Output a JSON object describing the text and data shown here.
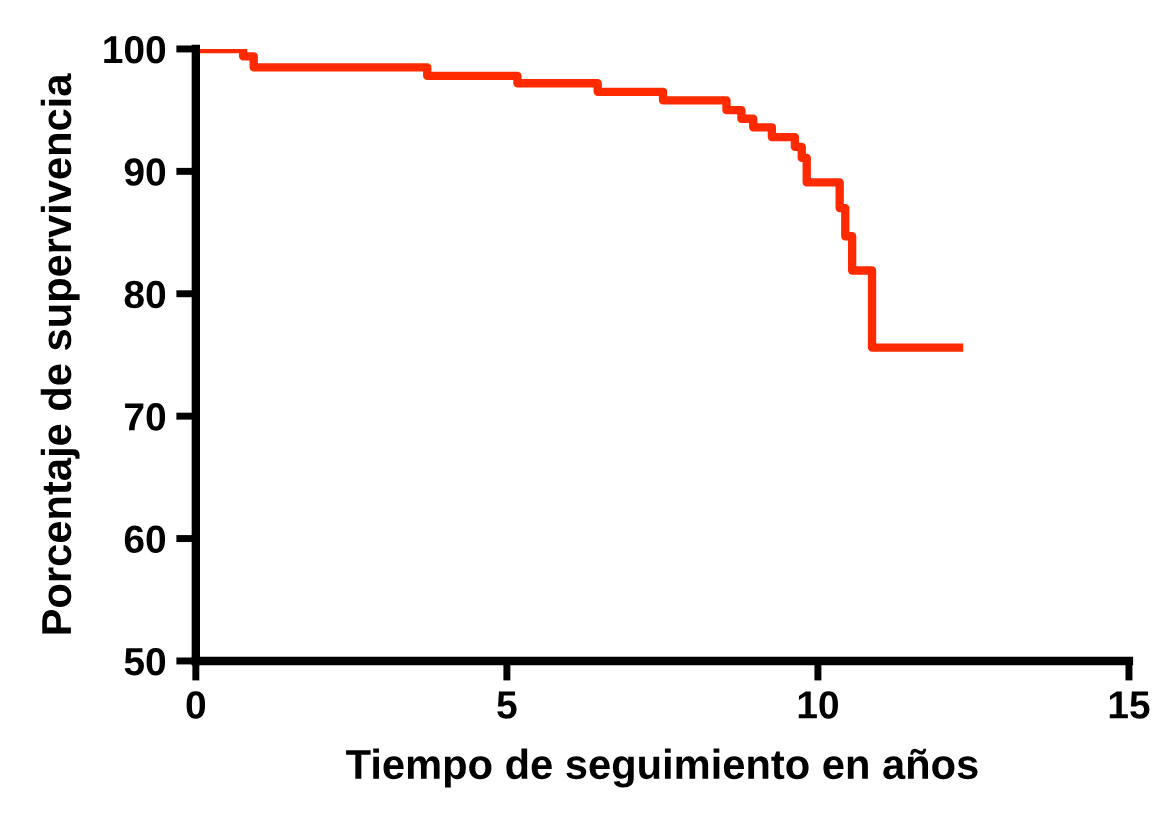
{
  "chart_data": {
    "type": "step",
    "xlabel": "Tiempo de seguimiento en años",
    "ylabel": "Porcentaje de supervivencia",
    "xlim": [
      0,
      15
    ],
    "ylim": [
      50,
      100
    ],
    "xticks": [
      0,
      5,
      10,
      15
    ],
    "yticks": [
      50,
      60,
      70,
      80,
      90,
      100
    ],
    "grid": false,
    "legend": false,
    "marker": "none",
    "line_style": "solid",
    "series": [
      {
        "color": "#ff2a00",
        "x": [
          0,
          0.76,
          0.93,
          3.72,
          5.17,
          6.46,
          7.51,
          8.53,
          8.77,
          8.96,
          9.26,
          9.63,
          9.74,
          9.82,
          10.35,
          10.44,
          10.55,
          10.87,
          12.27
        ],
        "values": [
          100,
          99.4,
          98.5,
          97.8,
          97.2,
          96.5,
          95.8,
          95.0,
          94.3,
          93.6,
          92.8,
          92.0,
          91.1,
          89.1,
          87.0,
          84.7,
          81.9,
          75.6,
          75.6
        ]
      }
    ]
  }
}
